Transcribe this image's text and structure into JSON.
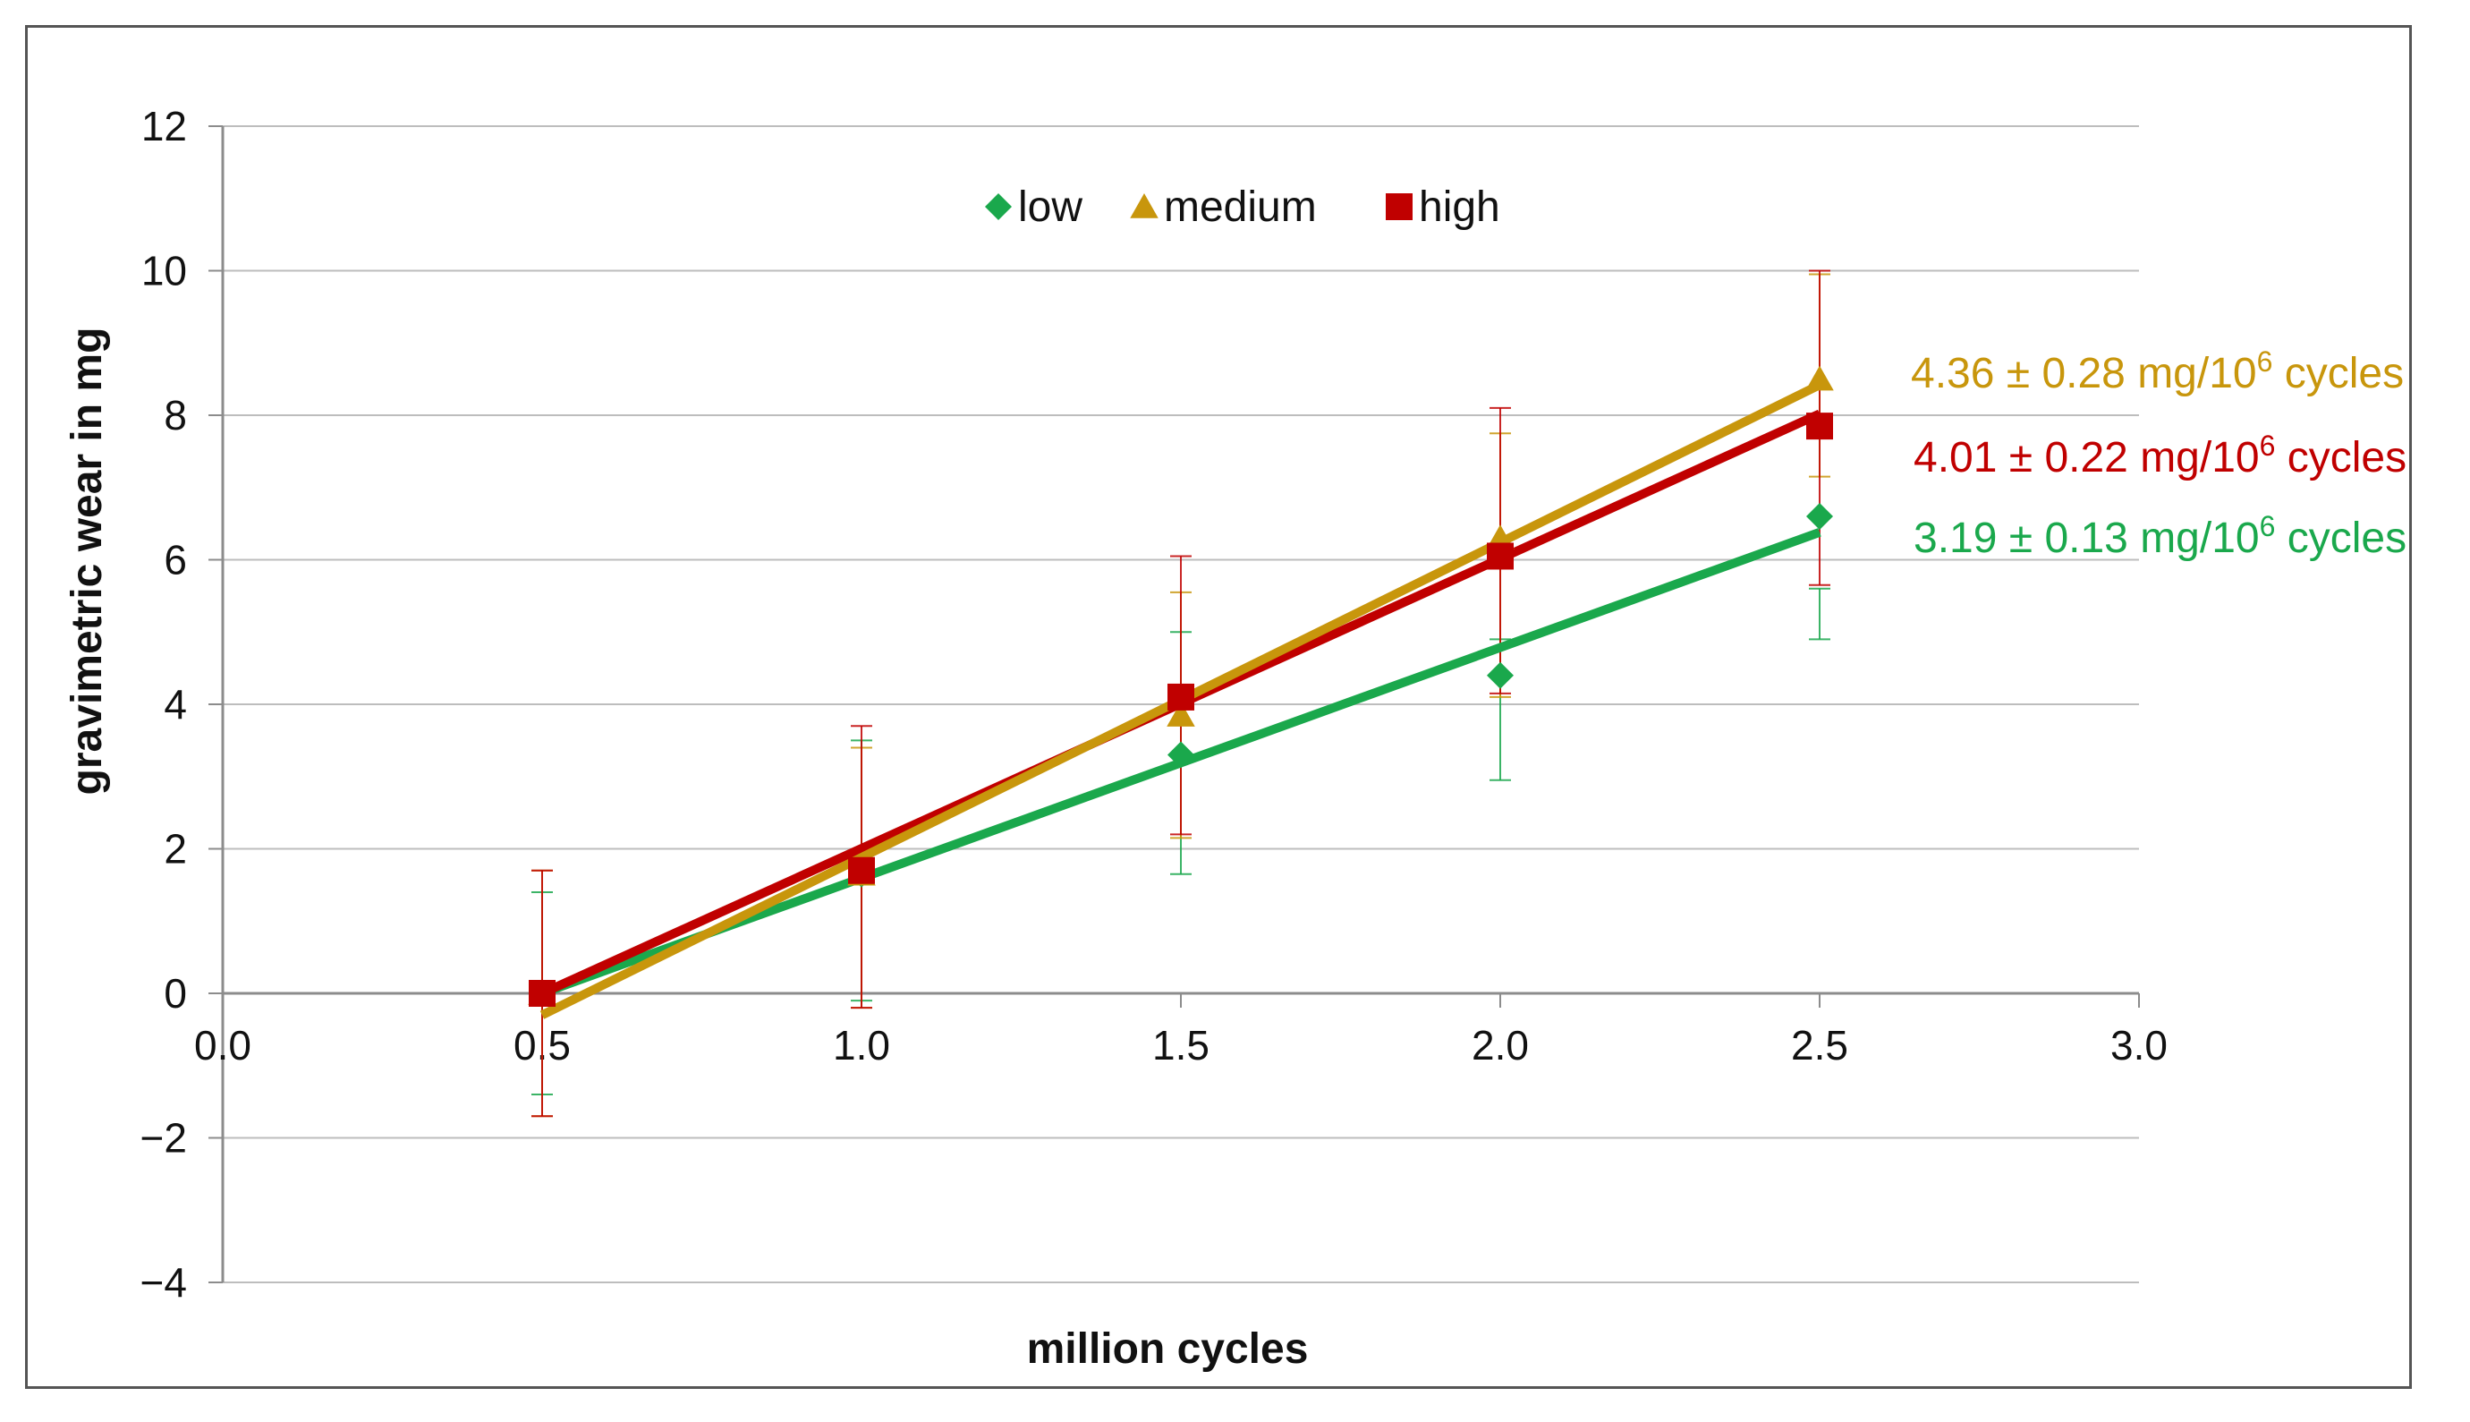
{
  "chart_data": {
    "type": "scatter",
    "title": "",
    "xlabel": "million cycles",
    "ylabel": "gravimetric wear in mg",
    "xlim": [
      0.0,
      3.0
    ],
    "ylim": [
      -4,
      12
    ],
    "x_ticks": [
      0.0,
      0.5,
      1.0,
      1.5,
      2.0,
      2.5,
      3.0
    ],
    "x_tick_labels": [
      "0.0",
      "0.5",
      "1.0",
      "1.5",
      "2.0",
      "2.5",
      "3.0"
    ],
    "y_ticks": [
      -4,
      -2,
      0,
      2,
      4,
      6,
      8,
      10,
      12
    ],
    "y_tick_labels": [
      "−4",
      "−2",
      "0",
      "2",
      "4",
      "6",
      "8",
      "10",
      "12"
    ],
    "grid": "horizontal",
    "legend_position": "top-center",
    "x": [
      0.5,
      1.0,
      1.5,
      2.0,
      2.5
    ],
    "series": [
      {
        "name": "low",
        "marker": "diamond",
        "color": "#1aa84c",
        "values": [
          0.0,
          1.65,
          3.3,
          4.4,
          6.6
        ],
        "err_low": [
          -1.4,
          -0.1,
          1.65,
          2.95,
          4.9
        ],
        "err_high": [
          1.4,
          3.5,
          5.0,
          4.9,
          5.6
        ],
        "fit": {
          "x": [
            0.5,
            2.5
          ],
          "y": [
            0.0,
            6.38
          ]
        },
        "slope_label": "3.19 ± 0.13 mg/10",
        "slope_sup": "6",
        "slope_unit": " cycles"
      },
      {
        "name": "medium",
        "marker": "triangle",
        "color": "#c8960c",
        "values": [
          0.0,
          1.65,
          3.85,
          6.3,
          8.5
        ],
        "err_low": [
          -1.7,
          -0.2,
          2.15,
          4.1,
          7.15
        ],
        "err_high": [
          1.7,
          3.4,
          5.55,
          7.75,
          9.95
        ],
        "fit": {
          "x": [
            0.5,
            2.5
          ],
          "y": [
            -0.3,
            8.42
          ]
        },
        "slope_label": "4.36 ± 0.28 mg/10",
        "slope_sup": "6",
        "slope_unit": " cycles"
      },
      {
        "name": "high",
        "marker": "square",
        "color": "#c00000",
        "values": [
          0.0,
          1.7,
          4.1,
          6.05,
          7.85
        ],
        "err_low": [
          -1.7,
          -0.2,
          2.2,
          4.15,
          5.65
        ],
        "err_high": [
          1.7,
          3.7,
          6.05,
          8.1,
          10.0
        ],
        "fit": {
          "x": [
            0.5,
            2.5
          ],
          "y": [
            0.0,
            8.02
          ]
        },
        "slope_label": "4.01 ± 0.22 mg/10",
        "slope_sup": "6",
        "slope_unit": " cycles"
      }
    ]
  }
}
